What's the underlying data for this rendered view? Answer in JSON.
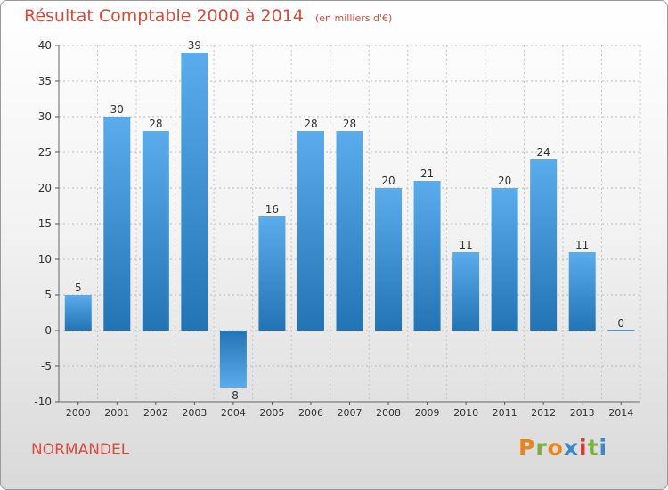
{
  "title": "Résultat Comptable 2000 à 2014",
  "unit_note": "(en milliers d'€)",
  "place_name": "NORMANDEL",
  "brand": {
    "letters": [
      "P",
      "r",
      "o",
      "x",
      "i",
      "t",
      "i"
    ],
    "colors": [
      "#e8841a",
      "#7bb13b",
      "#e8841a",
      "#3a88c8",
      "#d93a2a",
      "#7bb13b",
      "#3a88c8"
    ]
  },
  "colors": {
    "title": "#d94a3a",
    "bar_light": "#5aacec",
    "bar_dark": "#2374b4",
    "axis_text": "#333333",
    "grid": "#b8b8b8"
  },
  "chart_data": {
    "type": "bar",
    "title": "Résultat Comptable 2000 à 2014",
    "subtitle": "(en milliers d'€)",
    "categories": [
      "2000",
      "2001",
      "2002",
      "2003",
      "2004",
      "2005",
      "2006",
      "2007",
      "2008",
      "2009",
      "2010",
      "2011",
      "2012",
      "2013",
      "2014"
    ],
    "values": [
      5,
      30,
      28,
      39,
      -8,
      16,
      28,
      28,
      20,
      21,
      11,
      20,
      24,
      11,
      0
    ],
    "data_labels": [
      "5",
      "30",
      "28",
      "39",
      "-8",
      "16",
      "28",
      "28",
      "20",
      "21",
      "11",
      "20",
      "24",
      "11",
      "0"
    ],
    "ylim": [
      -10,
      40
    ],
    "yticks": [
      -10,
      -5,
      0,
      5,
      10,
      15,
      20,
      25,
      30,
      35,
      40
    ],
    "ytick_labels": [
      "-10",
      "-5",
      "0",
      "5",
      "10",
      "15",
      "20",
      "25",
      "30",
      "35",
      "40"
    ],
    "grid": true,
    "xlabel": "",
    "ylabel": ""
  }
}
